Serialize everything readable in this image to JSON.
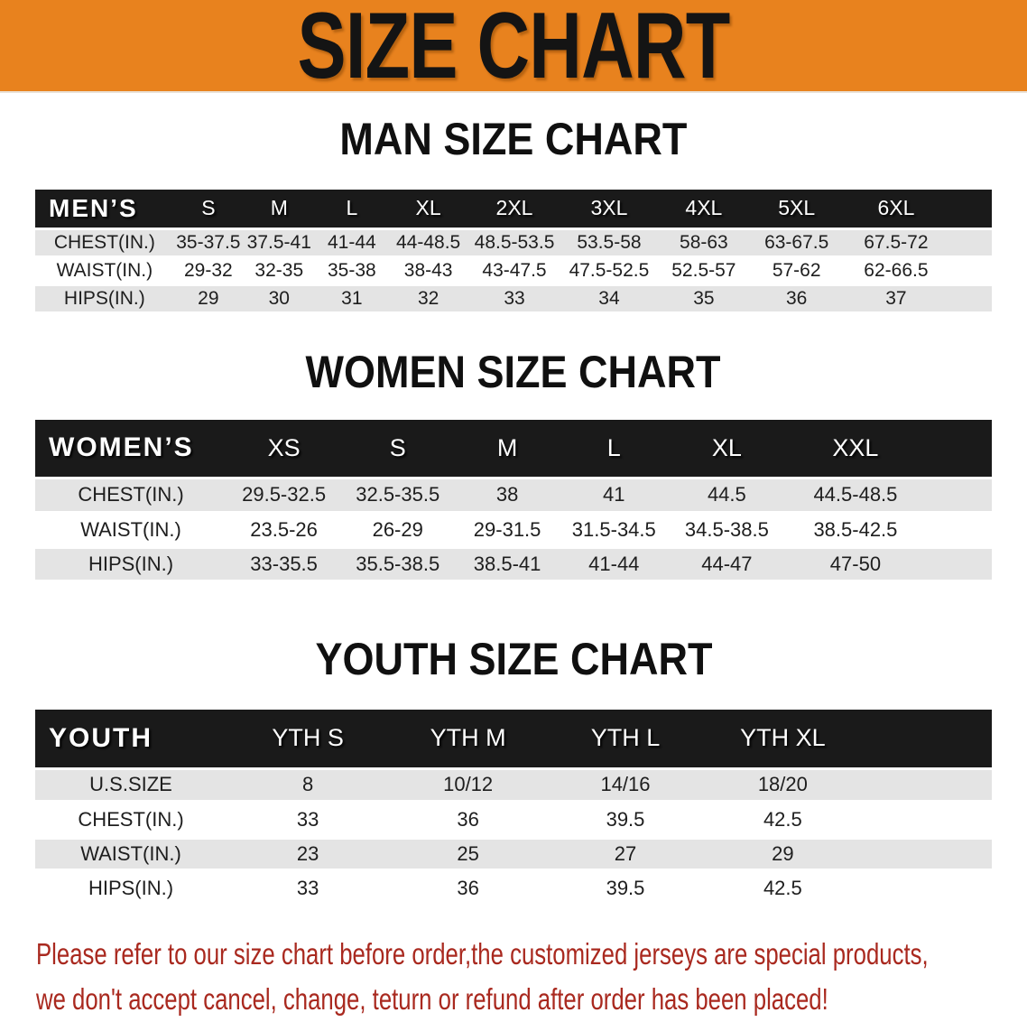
{
  "banner": {
    "title": "SIZE CHART"
  },
  "colors": {
    "banner_bg": "#E8821E",
    "header_bg": "#1A1A1A",
    "row_alt": "#E4E4E4",
    "disclaimer_red": "#A9291F",
    "text_dark": "#1E1E1E"
  },
  "sections": {
    "men": {
      "title": "MAN SIZE CHART",
      "table": {
        "header": [
          "MEN’S",
          "S",
          "M",
          "L",
          "XL",
          "2XL",
          "3XL",
          "4XL",
          "5XL",
          "6XL",
          ""
        ],
        "rows": [
          [
            "CHEST(IN.)",
            "35-37.5",
            "37.5-41",
            "41-44",
            "44-48.5",
            "48.5-53.5",
            "53.5-58",
            "58-63",
            "63-67.5",
            "67.5-72",
            ""
          ],
          [
            "WAIST(IN.)",
            "29-32",
            "32-35",
            "35-38",
            "38-43",
            "43-47.5",
            "47.5-52.5",
            "52.5-57",
            "57-62",
            "62-66.5",
            ""
          ],
          [
            "HIPS(IN.)",
            "29",
            "30",
            "31",
            "32",
            "33",
            "34",
            "35",
            "36",
            "37",
            ""
          ]
        ]
      }
    },
    "women": {
      "title": "WOMEN SIZE CHART",
      "table": {
        "header": [
          "WOMEN’S",
          "XS",
          "S",
          "M",
          "L",
          "XL",
          "XXL",
          ""
        ],
        "rows": [
          [
            "CHEST(IN.)",
            "29.5-32.5",
            "32.5-35.5",
            "38",
            "41",
            "44.5",
            "44.5-48.5",
            ""
          ],
          [
            "WAIST(IN.)",
            "23.5-26",
            "26-29",
            "29-31.5",
            "31.5-34.5",
            "34.5-38.5",
            "38.5-42.5",
            ""
          ],
          [
            "HIPS(IN.)",
            "33-35.5",
            "35.5-38.5",
            "38.5-41",
            "41-44",
            "44-47",
            "47-50",
            ""
          ]
        ]
      }
    },
    "youth": {
      "title": "YOUTH SIZE CHART",
      "table": {
        "header": [
          "YOUTH",
          "YTH S",
          "YTH M",
          "YTH L",
          "YTH XL",
          ""
        ],
        "rows": [
          [
            "U.S.SIZE",
            "8",
            "10/12",
            "14/16",
            "18/20",
            ""
          ],
          [
            "CHEST(IN.)",
            "33",
            "36",
            "39.5",
            "42.5",
            ""
          ],
          [
            "WAIST(IN.)",
            "23",
            "25",
            "27",
            "29",
            ""
          ],
          [
            "HIPS(IN.)",
            "33",
            "36",
            "39.5",
            "42.5",
            ""
          ]
        ]
      }
    }
  },
  "disclaimer": {
    "line1": "Please refer to our size chart before order,the customized jerseys are special products,",
    "line2": "we don't accept cancel, change, teturn or refund after order has been placed!"
  }
}
